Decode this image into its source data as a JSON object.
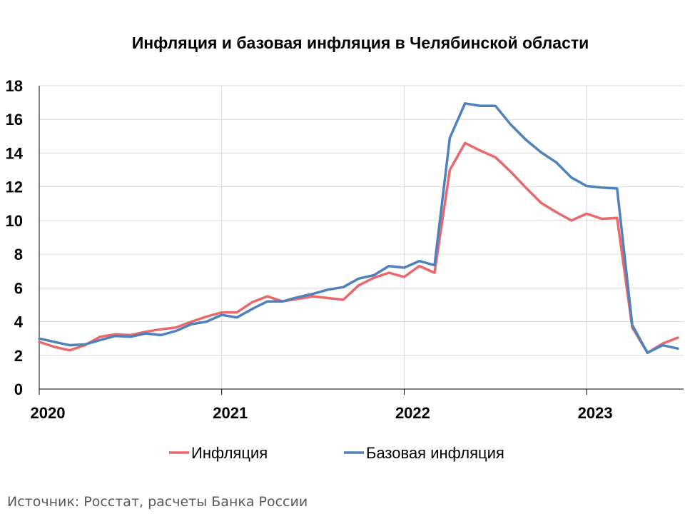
{
  "chart_data": {
    "type": "line",
    "title": "Инфляция и базовая инфляция в Челябинской области",
    "ylim": [
      0,
      18
    ],
    "yticks": [
      0,
      2,
      4,
      6,
      8,
      10,
      12,
      14,
      16,
      18
    ],
    "xlim": [
      0,
      42
    ],
    "x_tick_labels": [
      {
        "label": "2020",
        "x": 0
      },
      {
        "label": "2021",
        "x": 12
      },
      {
        "label": "2022",
        "x": 24
      },
      {
        "label": "2023",
        "x": 36
      }
    ],
    "grid": true,
    "legend_position": "bottom",
    "series": [
      {
        "name": "Инфляция",
        "color": "#E9686B",
        "values": [
          2.8,
          2.5,
          2.3,
          2.6,
          3.1,
          3.25,
          3.2,
          3.4,
          3.55,
          3.65,
          4.0,
          4.3,
          4.55,
          4.55,
          5.15,
          5.5,
          5.2,
          5.35,
          5.5,
          5.4,
          5.3,
          6.15,
          6.6,
          6.9,
          6.65,
          7.3,
          6.9,
          13.0,
          14.6,
          14.15,
          13.75,
          12.9,
          11.95,
          11.05,
          10.5,
          10.0,
          10.4,
          10.1,
          10.15,
          3.65,
          2.15,
          2.7,
          3.05
        ]
      },
      {
        "name": "Базовая инфляция",
        "color": "#4F81BD",
        "values": [
          3.0,
          2.8,
          2.6,
          2.65,
          2.9,
          3.15,
          3.1,
          3.3,
          3.2,
          3.45,
          3.85,
          4.0,
          4.4,
          4.25,
          4.75,
          5.2,
          5.2,
          5.45,
          5.65,
          5.9,
          6.05,
          6.55,
          6.75,
          7.3,
          7.2,
          7.6,
          7.35,
          14.9,
          16.95,
          16.8,
          16.8,
          15.7,
          14.8,
          14.05,
          13.45,
          12.55,
          12.05,
          11.95,
          11.9,
          3.8,
          2.15,
          2.6,
          2.4
        ]
      }
    ]
  },
  "source": "Источник: Росстат, расчеты Банка России"
}
